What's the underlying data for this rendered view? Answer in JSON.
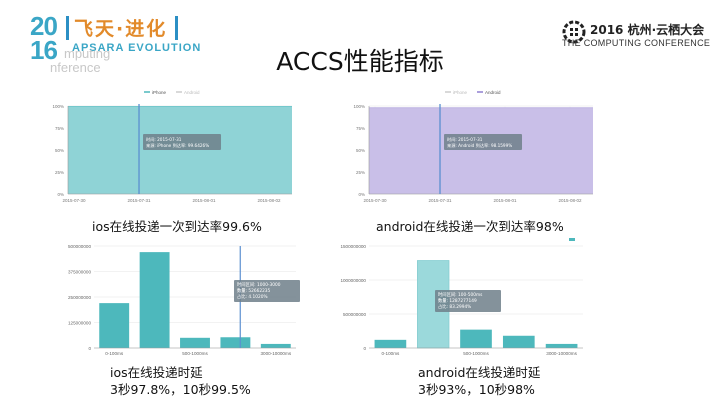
{
  "header": {
    "logo_year_top": "20",
    "logo_year_bottom": "16",
    "logo_cn": "飞天·进化",
    "logo_en": "APSARA EVOLUTION",
    "logo_sub1": "mputing",
    "logo_sub2": "nference",
    "conf_title": "2016 杭州·云栖大会",
    "conf_sub": "THE COMPUTING CONFERENCE"
  },
  "title": "ACCS性能指标",
  "colors": {
    "teal": "#8fd3d6",
    "teal_dark": "#4db8bc",
    "lavender": "#c9bfe8",
    "cursor": "#5b8fd0",
    "tooltip": "#6f7f8a"
  },
  "charts": [
    {
      "id": "ios-rate",
      "caption": "ios在线投递一次到达率99.6%",
      "legend": [
        "iPhone",
        "Android"
      ],
      "tooltip": [
        "时间:  2015-07-31",
        "来源: iPhone  到达率: 99.6426%"
      ]
    },
    {
      "id": "android-rate",
      "caption": "android在线投递一次到达率98%",
      "legend": [
        "iPhone",
        "Android"
      ],
      "tooltip": [
        "时间:  2015-07-31",
        "来源: Android  到达率: 98.1599%"
      ]
    },
    {
      "id": "ios-latency",
      "caption_line1": "ios在线投递时延",
      "caption_line2": "3秒97.8%，10秒99.5%",
      "tooltip": [
        "时间区间: 1000-3000",
        "数量:   52662235",
        "占比:   4.1020%"
      ]
    },
    {
      "id": "android-latency",
      "caption_line1": "android在线投递时延",
      "caption_line2": "3秒93%，10秒98%",
      "tooltip": [
        "时间区间: 100-500ms",
        "数量:   1287277149",
        "占比:   83.2994%"
      ]
    }
  ],
  "chart_data": [
    {
      "type": "area",
      "x": [
        "2015-07-30",
        "2015-07-31",
        "2015-08-01",
        "2015-08-02"
      ],
      "series": [
        {
          "name": "iPhone",
          "values": [
            99.6,
            99.6,
            99.6,
            99.6
          ]
        }
      ],
      "ylim": [
        0,
        100
      ],
      "yticks": [
        "0%",
        "25%",
        "50%",
        "75%",
        "100%"
      ],
      "legend": "top-center"
    },
    {
      "type": "area",
      "x": [
        "2015-07-30",
        "2015-07-31",
        "2015-08-01",
        "2015-08-02"
      ],
      "series": [
        {
          "name": "Android",
          "values": [
            98,
            98,
            98,
            98
          ]
        }
      ],
      "ylim": [
        0,
        100
      ],
      "yticks": [
        "0%",
        "25%",
        "50%",
        "75%",
        "100%"
      ],
      "legend": "top-center"
    },
    {
      "type": "bar",
      "categories": [
        "0-100ms",
        "100-500ms",
        "500-1000ms",
        "1000-3000ms",
        "3000-10000ms"
      ],
      "xtick_labels": [
        "0-100ms",
        "500-1000ms",
        "3000-10000ms"
      ],
      "values": [
        220000000,
        470000000,
        50000000,
        52662235,
        20000000
      ],
      "ylim": [
        0,
        500000000
      ],
      "yticks": [
        "0",
        "125000000",
        "250000000",
        "375000000",
        "500000000"
      ]
    },
    {
      "type": "bar",
      "categories": [
        "0-100ms",
        "100-500ms",
        "500-1000ms",
        "1000-3000ms",
        "3000-10000ms"
      ],
      "xtick_labels": [
        "0-100ms",
        "500-1000ms",
        "3000-10000ms"
      ],
      "values": [
        120000000,
        1287277149,
        270000000,
        180000000,
        60000000
      ],
      "ylim": [
        0,
        1500000000
      ],
      "yticks": [
        "0",
        "500000000",
        "1000000000",
        "1500000000"
      ]
    }
  ]
}
